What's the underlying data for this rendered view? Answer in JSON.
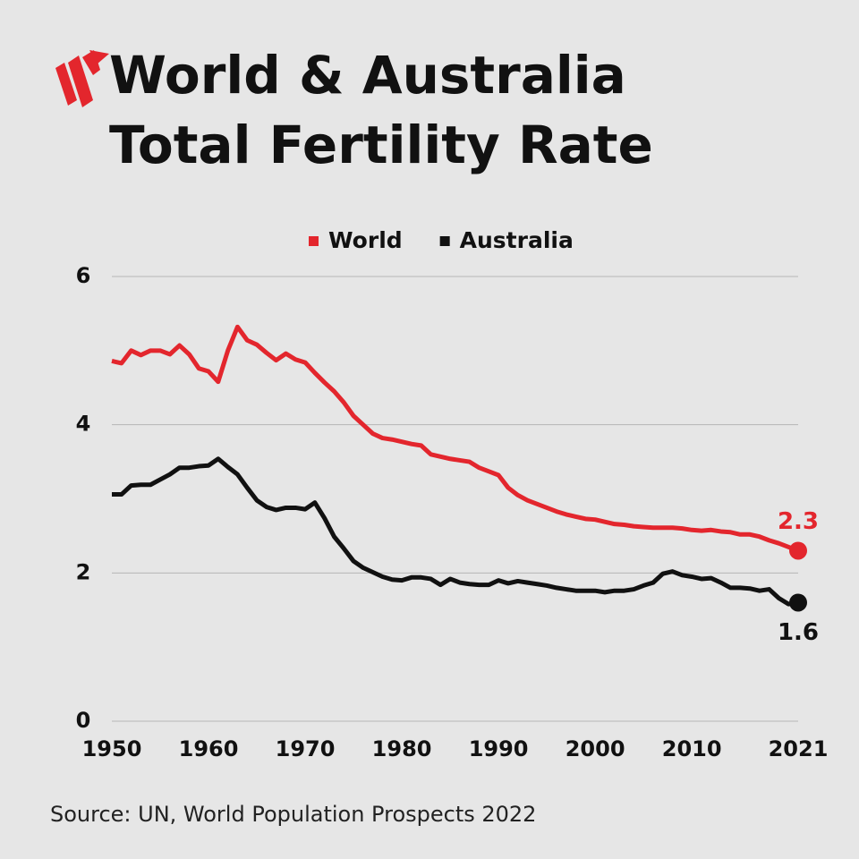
{
  "chart_data": {
    "type": "line",
    "title": [
      "World & Australia",
      "Total Fertility Rate"
    ],
    "source": "Source: UN, World Population Prospects 2022",
    "x": [
      1950,
      1951,
      1952,
      1953,
      1954,
      1955,
      1956,
      1957,
      1958,
      1959,
      1960,
      1961,
      1962,
      1963,
      1964,
      1965,
      1966,
      1967,
      1968,
      1969,
      1970,
      1971,
      1972,
      1973,
      1974,
      1975,
      1976,
      1977,
      1978,
      1979,
      1980,
      1981,
      1982,
      1983,
      1984,
      1985,
      1986,
      1987,
      1988,
      1989,
      1990,
      1991,
      1992,
      1993,
      1994,
      1995,
      1996,
      1997,
      1998,
      1999,
      2000,
      2001,
      2002,
      2003,
      2004,
      2005,
      2006,
      2007,
      2008,
      2009,
      2010,
      2011,
      2012,
      2013,
      2014,
      2015,
      2016,
      2017,
      2018,
      2019,
      2020,
      2021
    ],
    "series": [
      {
        "name": "World",
        "color": "#e3262d",
        "values": [
          4.86,
          4.83,
          5.0,
          4.94,
          5.0,
          5.0,
          4.95,
          5.07,
          4.95,
          4.76,
          4.72,
          4.58,
          5.0,
          5.32,
          5.14,
          5.08,
          4.97,
          4.87,
          4.96,
          4.88,
          4.84,
          4.7,
          4.57,
          4.45,
          4.3,
          4.12,
          4.0,
          3.88,
          3.82,
          3.8,
          3.77,
          3.74,
          3.72,
          3.6,
          3.57,
          3.54,
          3.52,
          3.5,
          3.42,
          3.37,
          3.32,
          3.15,
          3.05,
          2.98,
          2.93,
          2.88,
          2.83,
          2.79,
          2.76,
          2.73,
          2.72,
          2.69,
          2.66,
          2.65,
          2.63,
          2.62,
          2.61,
          2.61,
          2.61,
          2.6,
          2.58,
          2.57,
          2.58,
          2.56,
          2.55,
          2.52,
          2.52,
          2.49,
          2.44,
          2.4,
          2.35,
          2.3
        ]
      },
      {
        "name": "Australia",
        "color": "#111111",
        "values": [
          3.06,
          3.06,
          3.18,
          3.19,
          3.19,
          3.26,
          3.33,
          3.42,
          3.42,
          3.44,
          3.45,
          3.54,
          3.43,
          3.33,
          3.15,
          2.98,
          2.89,
          2.85,
          2.88,
          2.88,
          2.86,
          2.95,
          2.74,
          2.49,
          2.33,
          2.16,
          2.07,
          2.01,
          1.95,
          1.91,
          1.9,
          1.94,
          1.94,
          1.92,
          1.84,
          1.92,
          1.87,
          1.85,
          1.84,
          1.84,
          1.9,
          1.86,
          1.89,
          1.87,
          1.85,
          1.83,
          1.8,
          1.78,
          1.76,
          1.76,
          1.76,
          1.74,
          1.76,
          1.76,
          1.78,
          1.83,
          1.87,
          1.99,
          2.02,
          1.97,
          1.95,
          1.92,
          1.93,
          1.87,
          1.8,
          1.8,
          1.79,
          1.76,
          1.78,
          1.66,
          1.58,
          1.6
        ]
      }
    ],
    "xlim": [
      1950,
      2021
    ],
    "xticks": [
      1950,
      1960,
      1970,
      1980,
      1990,
      2000,
      2010,
      2021
    ],
    "ylim": [
      0,
      6
    ],
    "yticks": [
      0,
      2,
      4,
      6
    ],
    "grid": true
  }
}
